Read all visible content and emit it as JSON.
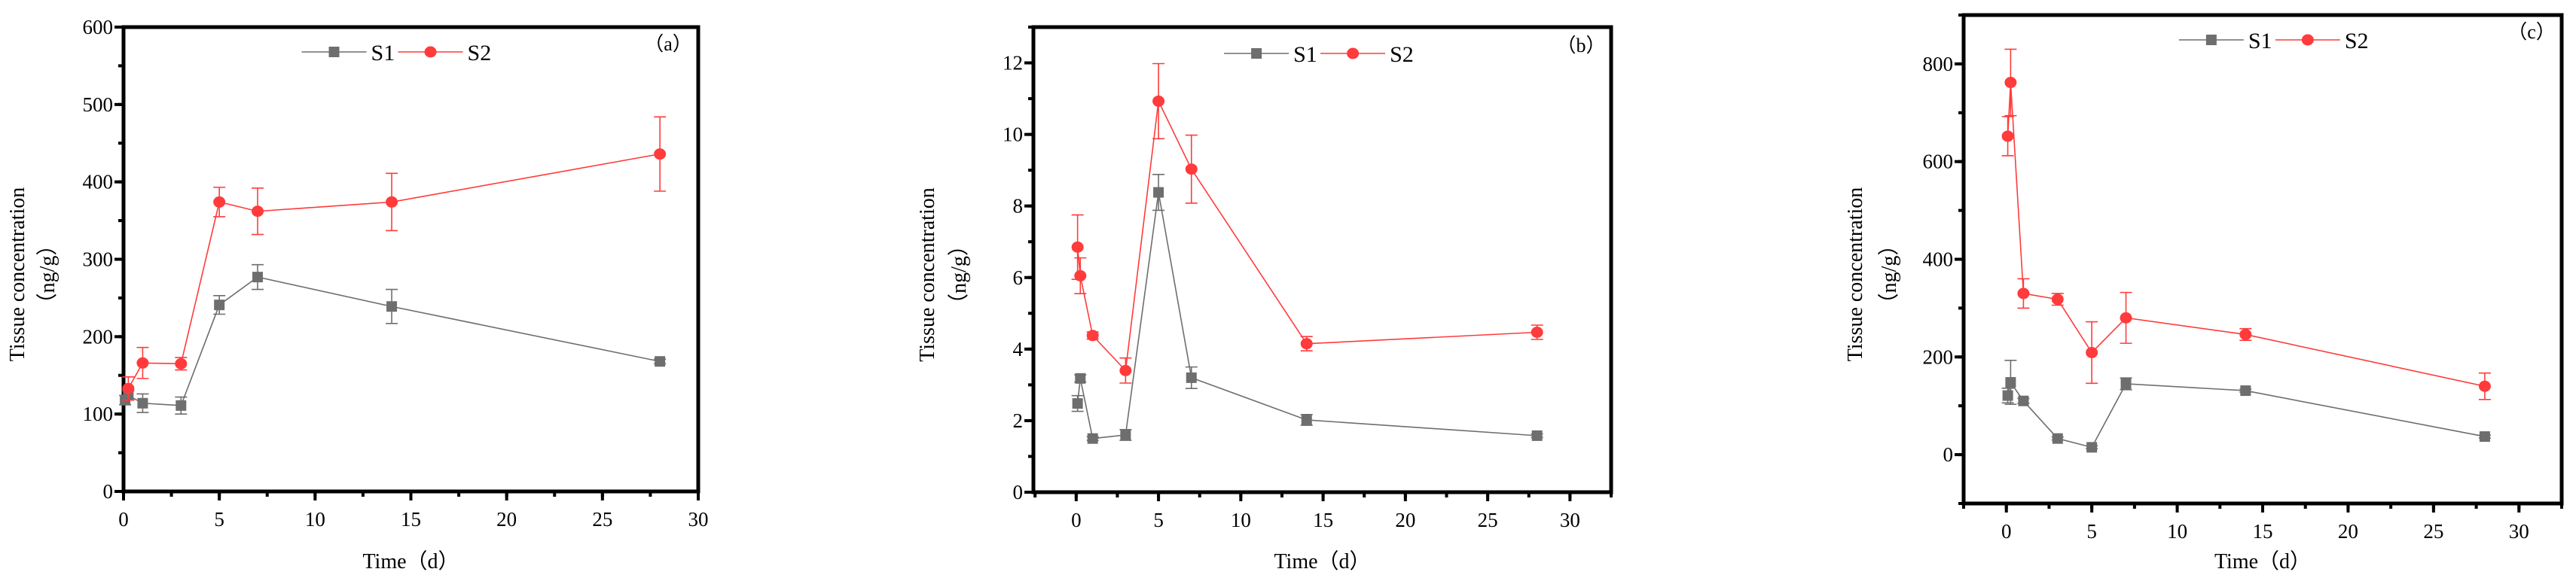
{
  "colors": {
    "S1": "#6e6e6e",
    "S2": "#ff3b3b",
    "axis": "#000000"
  },
  "chart_data": [
    {
      "type": "line",
      "panel_label": "（a）",
      "xlabel": "Time（d）",
      "ylabel": "Tissue concentration",
      "ylabel_unit": "（ng/g）",
      "xlim": [
        0,
        30
      ],
      "ylim": [
        0,
        600
      ],
      "xticks": [
        0,
        5,
        10,
        15,
        20,
        25,
        30
      ],
      "yticks": [
        0,
        100,
        200,
        300,
        400,
        500,
        600
      ],
      "xminor": 2.5,
      "yminor": 50,
      "legend": {
        "placement": "top-center",
        "entries": [
          "S1",
          "S2"
        ]
      },
      "series": [
        {
          "name": "S1",
          "x": [
            0.083,
            0.25,
            1,
            3,
            5,
            7,
            14,
            28
          ],
          "y": [
            118,
            124,
            114,
            111,
            241,
            277,
            239,
            168
          ],
          "err": [
            6,
            6,
            12,
            11,
            12,
            16,
            22,
            3
          ]
        },
        {
          "name": "S2",
          "x": [
            0.25,
            1,
            3,
            5,
            7,
            14,
            28
          ],
          "y": [
            133,
            166,
            165,
            374,
            362,
            374,
            436
          ],
          "err": [
            15,
            20,
            8,
            19,
            30,
            37,
            48
          ]
        }
      ]
    },
    {
      "type": "line",
      "panel_label": "（b）",
      "xlabel": "Time（d）",
      "ylabel": "Tissue concentration",
      "ylabel_unit": "（ng/g）",
      "xlim": [
        -2.6,
        32.5
      ],
      "ylim": [
        0,
        13
      ],
      "xticks": [
        0,
        5,
        10,
        15,
        20,
        25,
        30
      ],
      "yticks": [
        0,
        2,
        4,
        6,
        8,
        10,
        12
      ],
      "xminor": 2.5,
      "yminor": 1,
      "legend": {
        "placement": "top-center",
        "entries": [
          "S1",
          "S2"
        ]
      },
      "series": [
        {
          "name": "S1",
          "x": [
            0.083,
            0.25,
            1,
            3,
            5,
            7,
            14,
            28
          ],
          "y": [
            2.48,
            3.18,
            1.5,
            1.6,
            8.38,
            3.2,
            2.02,
            1.58
          ],
          "err": [
            0.22,
            0.1,
            0.05,
            0.15,
            0.5,
            0.3,
            0.15,
            0.05
          ]
        },
        {
          "name": "S2",
          "x": [
            0.083,
            0.25,
            1,
            3,
            5,
            7,
            14,
            28
          ],
          "y": [
            6.85,
            6.05,
            4.38,
            3.4,
            10.93,
            9.03,
            4.15,
            4.47
          ],
          "err": [
            0.9,
            0.5,
            0.1,
            0.35,
            1.05,
            0.95,
            0.2,
            0.2
          ]
        }
      ]
    },
    {
      "type": "line",
      "panel_label": "（c）",
      "xlabel": "Time（d）",
      "ylabel": "Tissue concentration",
      "ylabel_unit": "（ng/g）",
      "xlim": [
        -2.5,
        32.5
      ],
      "ylim": [
        -100,
        900
      ],
      "xticks": [
        0,
        5,
        10,
        15,
        20,
        25,
        30
      ],
      "yticks": [
        0,
        200,
        400,
        600,
        800
      ],
      "xminor": 2.5,
      "yminor": 100,
      "legend": {
        "placement": "top-center",
        "entries": [
          "S1",
          "S2"
        ]
      },
      "series": [
        {
          "name": "S1",
          "x": [
            0.083,
            0.25,
            1,
            3,
            5,
            7,
            14,
            28
          ],
          "y": [
            121,
            148,
            110,
            33,
            15,
            145,
            131,
            37
          ],
          "err": [
            15,
            45,
            5,
            3,
            3,
            12,
            3,
            3
          ]
        },
        {
          "name": "S2",
          "x": [
            0.083,
            0.25,
            1,
            3,
            5,
            7,
            14,
            28
          ],
          "y": [
            652,
            762,
            330,
            318,
            209,
            280,
            246,
            140
          ],
          "err": [
            40,
            68,
            30,
            12,
            63,
            52,
            12,
            27
          ]
        }
      ]
    }
  ]
}
